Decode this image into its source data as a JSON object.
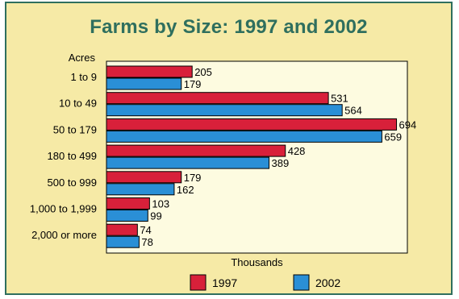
{
  "chart_data": {
    "type": "bar",
    "orientation": "horizontal",
    "title": "Farms by Size:  1997 and 2002",
    "ylabel": "Acres",
    "xlabel": "Thousands",
    "categories": [
      "1 to 9",
      "10 to 49",
      "50 to 179",
      "180 to 499",
      "500 to 999",
      "1,000 to 1,999",
      "2,000 or more"
    ],
    "series": [
      {
        "name": "1997",
        "color": "#d8203a",
        "values": [
          205,
          531,
          694,
          428,
          179,
          103,
          74
        ]
      },
      {
        "name": "2002",
        "color": "#2a8fd6",
        "values": [
          179,
          564,
          659,
          389,
          162,
          99,
          78
        ]
      }
    ],
    "xlim": [
      0,
      720
    ],
    "grid": false,
    "legend_position": "bottom"
  },
  "colors": {
    "background": "#f6eaa6",
    "plot_area": "#fdfbe0",
    "frame": "#2f6f5e",
    "title": "#2f6f5e"
  }
}
